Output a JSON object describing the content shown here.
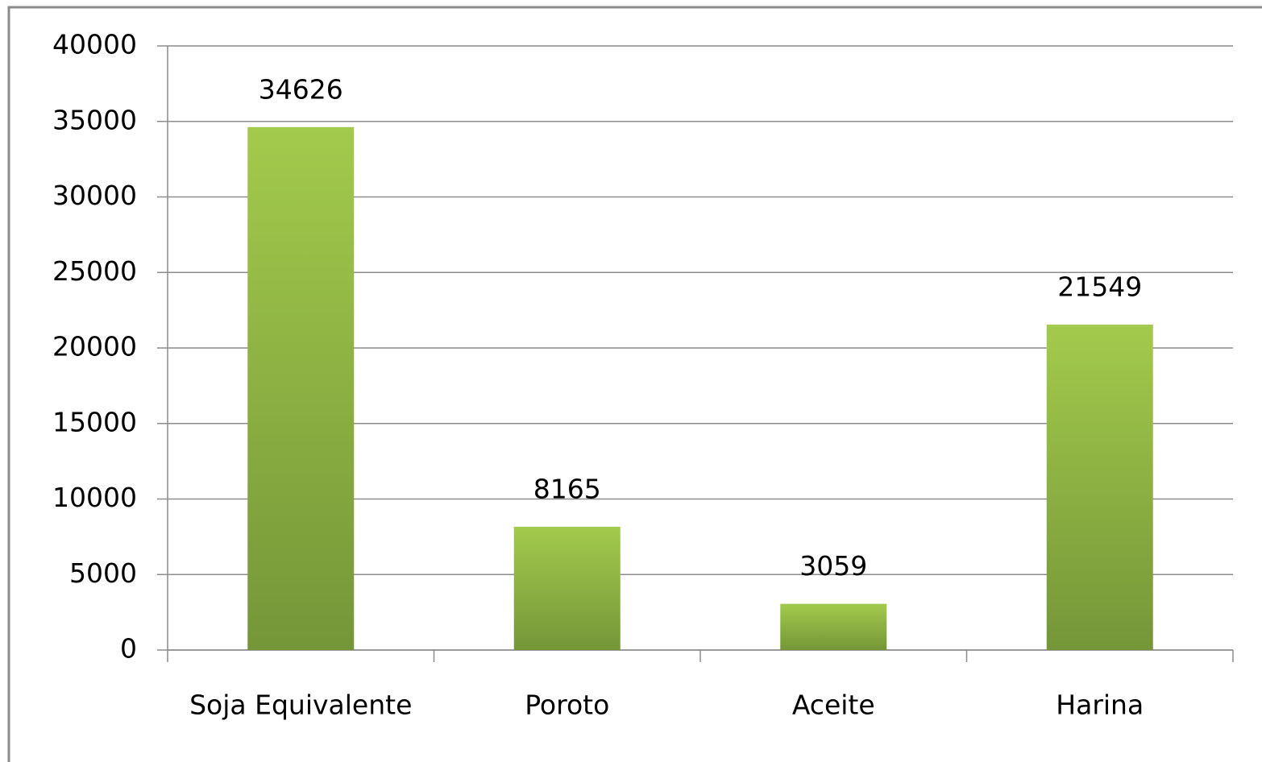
{
  "chart_data": {
    "type": "bar",
    "categories": [
      "Soja Equivalente",
      "Poroto",
      "Aceite",
      "Harina"
    ],
    "values": [
      34626,
      8165,
      3059,
      21549
    ],
    "color": "#8fb443",
    "ylim": [
      0,
      40000
    ],
    "yticks": [
      0,
      5000,
      10000,
      15000,
      20000,
      25000,
      30000,
      35000,
      40000
    ],
    "grid": true,
    "data_labels": true
  }
}
